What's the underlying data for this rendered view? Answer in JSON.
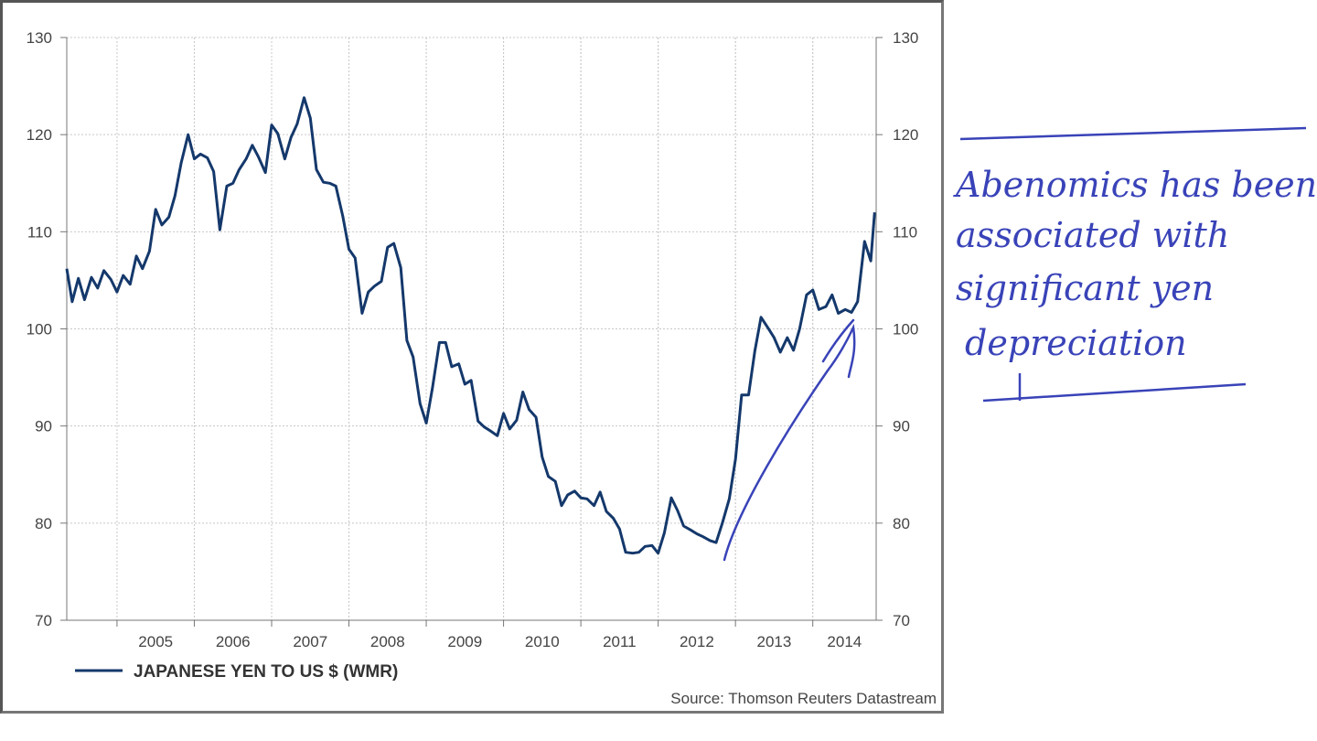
{
  "chart_data": {
    "type": "line",
    "series": [
      {
        "name": "JAPANESE YEN TO US $ (WMR)",
        "color": "#14386b",
        "points": [
          [
            2004.35,
            106.2
          ],
          [
            2004.42,
            102.8
          ],
          [
            2004.5,
            105.2
          ],
          [
            2004.58,
            103.0
          ],
          [
            2004.67,
            105.3
          ],
          [
            2004.75,
            104.2
          ],
          [
            2004.83,
            106.0
          ],
          [
            2004.92,
            105.1
          ],
          [
            2005.0,
            103.8
          ],
          [
            2005.08,
            105.5
          ],
          [
            2005.17,
            104.6
          ],
          [
            2005.25,
            107.5
          ],
          [
            2005.33,
            106.2
          ],
          [
            2005.42,
            108.0
          ],
          [
            2005.5,
            112.3
          ],
          [
            2005.58,
            110.7
          ],
          [
            2005.67,
            111.5
          ],
          [
            2005.75,
            113.7
          ],
          [
            2005.83,
            117.1
          ],
          [
            2005.92,
            120.0
          ],
          [
            2006.0,
            117.5
          ],
          [
            2006.08,
            118.0
          ],
          [
            2006.17,
            117.6
          ],
          [
            2006.25,
            116.2
          ],
          [
            2006.33,
            110.2
          ],
          [
            2006.42,
            114.7
          ],
          [
            2006.5,
            115.0
          ],
          [
            2006.58,
            116.4
          ],
          [
            2006.67,
            117.5
          ],
          [
            2006.75,
            118.9
          ],
          [
            2006.83,
            117.7
          ],
          [
            2006.92,
            116.1
          ],
          [
            2007.0,
            121.0
          ],
          [
            2007.08,
            120.1
          ],
          [
            2007.17,
            117.5
          ],
          [
            2007.25,
            119.7
          ],
          [
            2007.33,
            121.1
          ],
          [
            2007.42,
            123.8
          ],
          [
            2007.5,
            121.7
          ],
          [
            2007.58,
            116.4
          ],
          [
            2007.67,
            115.1
          ],
          [
            2007.75,
            115.0
          ],
          [
            2007.83,
            114.7
          ],
          [
            2007.92,
            111.6
          ],
          [
            2008.0,
            108.2
          ],
          [
            2008.08,
            107.3
          ],
          [
            2008.17,
            101.6
          ],
          [
            2008.25,
            103.8
          ],
          [
            2008.33,
            104.4
          ],
          [
            2008.42,
            104.9
          ],
          [
            2008.5,
            108.4
          ],
          [
            2008.58,
            108.8
          ],
          [
            2008.67,
            106.3
          ],
          [
            2008.75,
            98.8
          ],
          [
            2008.83,
            97.1
          ],
          [
            2008.92,
            92.3
          ],
          [
            2009.0,
            90.3
          ],
          [
            2009.08,
            93.9
          ],
          [
            2009.17,
            98.6
          ],
          [
            2009.25,
            98.6
          ],
          [
            2009.33,
            96.1
          ],
          [
            2009.42,
            96.4
          ],
          [
            2009.5,
            94.3
          ],
          [
            2009.58,
            94.7
          ],
          [
            2009.67,
            90.5
          ],
          [
            2009.75,
            89.9
          ],
          [
            2009.83,
            89.5
          ],
          [
            2009.92,
            89.0
          ],
          [
            2010.0,
            91.3
          ],
          [
            2010.08,
            89.7
          ],
          [
            2010.17,
            90.6
          ],
          [
            2010.25,
            93.5
          ],
          [
            2010.33,
            91.7
          ],
          [
            2010.42,
            90.9
          ],
          [
            2010.5,
            86.8
          ],
          [
            2010.58,
            84.8
          ],
          [
            2010.67,
            84.3
          ],
          [
            2010.75,
            81.8
          ],
          [
            2010.83,
            82.9
          ],
          [
            2010.92,
            83.3
          ],
          [
            2011.0,
            82.6
          ],
          [
            2011.08,
            82.5
          ],
          [
            2011.17,
            81.8
          ],
          [
            2011.25,
            83.2
          ],
          [
            2011.33,
            81.2
          ],
          [
            2011.42,
            80.5
          ],
          [
            2011.5,
            79.4
          ],
          [
            2011.58,
            77.0
          ],
          [
            2011.67,
            76.9
          ],
          [
            2011.75,
            77.0
          ],
          [
            2011.83,
            77.6
          ],
          [
            2011.92,
            77.7
          ],
          [
            2012.0,
            76.9
          ],
          [
            2012.08,
            79.0
          ],
          [
            2012.17,
            82.6
          ],
          [
            2012.25,
            81.3
          ],
          [
            2012.33,
            79.7
          ],
          [
            2012.42,
            79.3
          ],
          [
            2012.5,
            78.9
          ],
          [
            2012.58,
            78.6
          ],
          [
            2012.67,
            78.2
          ],
          [
            2012.75,
            78.0
          ],
          [
            2012.83,
            80.0
          ],
          [
            2012.92,
            82.5
          ],
          [
            2013.0,
            86.6
          ],
          [
            2013.08,
            93.2
          ],
          [
            2013.17,
            93.2
          ],
          [
            2013.25,
            97.7
          ],
          [
            2013.33,
            101.2
          ],
          [
            2013.42,
            100.1
          ],
          [
            2013.5,
            99.1
          ],
          [
            2013.58,
            97.6
          ],
          [
            2013.67,
            99.1
          ],
          [
            2013.75,
            97.8
          ],
          [
            2013.83,
            100.0
          ],
          [
            2013.92,
            103.5
          ],
          [
            2014.0,
            104.0
          ],
          [
            2014.08,
            102.0
          ],
          [
            2014.17,
            102.3
          ],
          [
            2014.25,
            103.5
          ],
          [
            2014.33,
            101.6
          ],
          [
            2014.42,
            102.0
          ],
          [
            2014.5,
            101.7
          ],
          [
            2014.58,
            102.8
          ],
          [
            2014.67,
            109.0
          ],
          [
            2014.75,
            107.0
          ],
          [
            2014.8,
            112.0
          ]
        ]
      }
    ],
    "x_ticks": [
      "2005",
      "2006",
      "2007",
      "2008",
      "2009",
      "2010",
      "2011",
      "2012",
      "2013",
      "2014"
    ],
    "y_ticks": [
      "70",
      "80",
      "90",
      "100",
      "110",
      "120",
      "130"
    ],
    "xlim": [
      2004.35,
      2014.82
    ],
    "ylim": [
      70,
      130
    ],
    "grid": true,
    "legend_position": "bottom-left",
    "source": "Source: Thomson Reuters Datastream"
  },
  "annotation": {
    "lines": [
      "Abenomics has been",
      "associated with",
      "significant yen",
      "depreciation"
    ],
    "color": "#3943b8",
    "style": "handwritten"
  }
}
